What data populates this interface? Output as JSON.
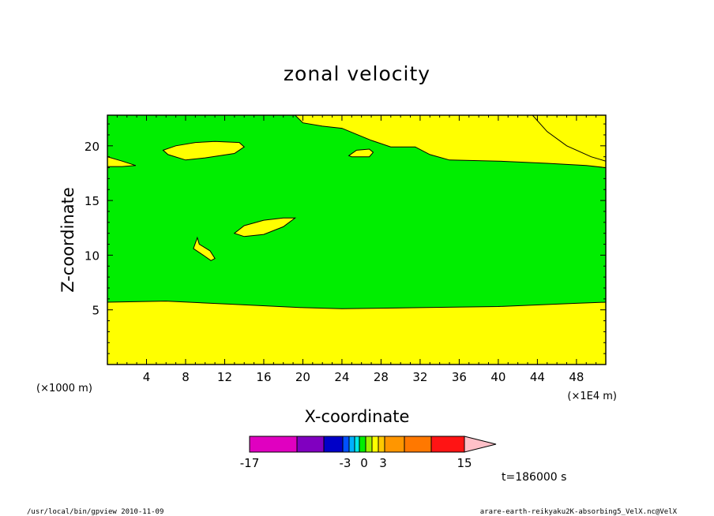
{
  "chart_data": {
    "type": "contour",
    "title": "zonal velocity",
    "xlabel": "X-coordinate",
    "ylabel": "Z-coordinate",
    "x_unit_left": "(×1000 m)",
    "x_unit_right": "(×1E4 m)",
    "xlim": [
      0,
      51
    ],
    "ylim": [
      0,
      22.8
    ],
    "x_ticks": [
      4,
      8,
      12,
      16,
      20,
      24,
      28,
      32,
      36,
      40,
      44,
      48
    ],
    "y_ticks": [
      5,
      10,
      15,
      20
    ],
    "colors": {
      "positive_fill": "#ffff00",
      "near_zero_fill": "#00ee00"
    },
    "regions": [
      {
        "name": "lower-layer",
        "level": "0 to 3",
        "outline": [
          [
            0,
            0
          ],
          [
            51,
            0
          ],
          [
            51,
            5.7
          ],
          [
            48,
            5.6
          ],
          [
            40,
            5.3
          ],
          [
            32,
            5.2
          ],
          [
            24,
            5.1
          ],
          [
            20,
            5.2
          ],
          [
            13,
            5.5
          ],
          [
            6,
            5.8
          ],
          [
            0,
            5.7
          ]
        ]
      },
      {
        "name": "upper-right-layer",
        "level": "0 to 3",
        "outline": [
          [
            19.2,
            22.8
          ],
          [
            51,
            22.8
          ],
          [
            51,
            18.1
          ],
          [
            49.5,
            18.7
          ],
          [
            47,
            19.7
          ],
          [
            45,
            21.2
          ],
          [
            43.5,
            22.8
          ],
          [
            44,
            22.8
          ],
          [
            30,
            22.8
          ],
          [
            19.2,
            22.8
          ]
        ],
        "upper_boundary": [
          [
            19.2,
            22.8
          ],
          [
            20,
            22.1
          ],
          [
            22,
            21.8
          ],
          [
            24,
            21.6
          ],
          [
            27,
            20.5
          ],
          [
            29,
            19.9
          ],
          [
            31.5,
            19.9
          ],
          [
            33,
            19.2
          ],
          [
            35,
            18.7
          ],
          [
            40,
            18.6
          ],
          [
            45,
            18.4
          ],
          [
            49,
            18.2
          ],
          [
            51,
            18.0
          ]
        ]
      },
      {
        "name": "left-edge-sliver",
        "level": "0 to 3",
        "outline": [
          [
            0,
            19.0
          ],
          [
            1.5,
            18.6
          ],
          [
            2.9,
            18.2
          ],
          [
            1.5,
            18.1
          ],
          [
            0,
            18.1
          ]
        ]
      },
      {
        "name": "island-a",
        "level": "0 to 3",
        "outline": [
          [
            5.7,
            19.6
          ],
          [
            7,
            20.0
          ],
          [
            9,
            20.3
          ],
          [
            11,
            20.4
          ],
          [
            13.5,
            20.3
          ],
          [
            14,
            19.9
          ],
          [
            13,
            19.3
          ],
          [
            10,
            18.9
          ],
          [
            8,
            18.7
          ],
          [
            6.2,
            19.2
          ]
        ]
      },
      {
        "name": "island-b",
        "level": "0 to 3",
        "outline": [
          [
            24.7,
            19.1
          ],
          [
            25.5,
            19.6
          ],
          [
            26.8,
            19.7
          ],
          [
            27.2,
            19.4
          ],
          [
            26.8,
            19.0
          ],
          [
            25,
            19.0
          ]
        ]
      },
      {
        "name": "island-c",
        "level": "0 to 3",
        "outline": [
          [
            13,
            12.0
          ],
          [
            14,
            12.7
          ],
          [
            16,
            13.2
          ],
          [
            18,
            13.4
          ],
          [
            19.2,
            13.4
          ],
          [
            18,
            12.6
          ],
          [
            16,
            11.9
          ],
          [
            14,
            11.7
          ]
        ]
      },
      {
        "name": "island-d",
        "level": "0 to 3",
        "outline": [
          [
            8.8,
            10.6
          ],
          [
            9.2,
            11.6
          ],
          [
            9.4,
            11.0
          ],
          [
            10.5,
            10.4
          ],
          [
            11,
            9.7
          ],
          [
            10.6,
            9.5
          ],
          [
            9.8,
            10.0
          ]
        ]
      }
    ],
    "colorbar": {
      "levels": [
        -17,
        -3,
        0,
        3,
        15
      ],
      "tick_labels": [
        "-17",
        "-3",
        "0",
        "3",
        "15"
      ],
      "segments": [
        "#e000c0",
        "#8000c0",
        "#0000c8",
        "#0050ff",
        "#00b0ff",
        "#00e8e8",
        "#00ee00",
        "#a0f000",
        "#ffff00",
        "#ffc800",
        "#ff9600",
        "#ff7800",
        "#ff1414",
        "#ff8070"
      ],
      "extension_color": "#ffc0c8"
    },
    "time_label": "t=186000 s"
  },
  "footer": {
    "left": "/usr/local/bin/gpview  2010-11-09",
    "right": "arare-earth-reikyaku2K-absorbing5_VelX.nc@VelX"
  }
}
